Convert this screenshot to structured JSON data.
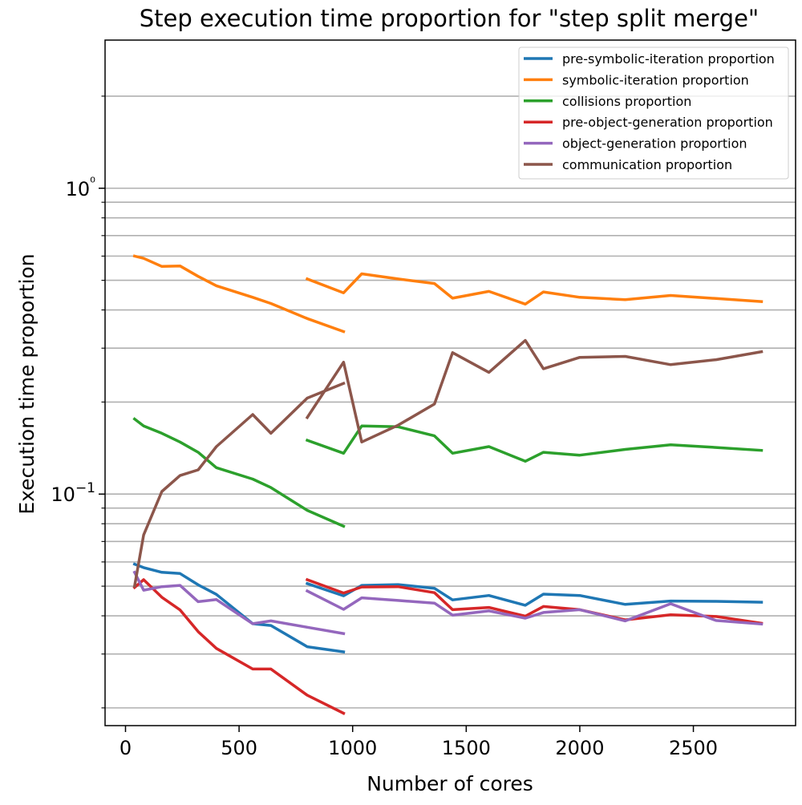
{
  "chart_data": {
    "type": "line",
    "title": "Step execution time proportion for \"step split merge\"",
    "xlabel": "Number of cores",
    "ylabel": "Execution time proportion",
    "xscale": "linear",
    "yscale": "log",
    "xlim": [
      -90,
      2950
    ],
    "ylim": [
      0.0175,
      3.05
    ],
    "grid": "y-major-and-minor",
    "legend_position": "top-right",
    "x_ticks": [
      0,
      500,
      1000,
      1500,
      2000,
      2500
    ],
    "x_tick_labels": [
      "0",
      "500",
      "1000",
      "1500",
      "2000",
      "2500"
    ],
    "y_ticks": [
      0.1,
      1
    ],
    "y_tick_labels": [
      "10−1",
      "10⁰"
    ],
    "y_minor_ticks": [
      0.02,
      0.03,
      0.04,
      0.05,
      0.06,
      0.07,
      0.08,
      0.09,
      0.2,
      0.3,
      0.4,
      0.5,
      0.6,
      0.7,
      0.8,
      0.9,
      2
    ],
    "series": [
      {
        "name": "pre-symbolic-iteration proportion",
        "color": "#1f77b4",
        "segments": [
          {
            "x": [
              40,
              80,
              160,
              240,
              320,
              400,
              560,
              640,
              800,
              960
            ],
            "y": [
              0.059,
              0.0575,
              0.0555,
              0.055,
              0.0505,
              0.047,
              0.0377,
              0.0372,
              0.0317,
              0.0305
            ]
          },
          {
            "x": [
              800,
              960,
              1040,
              1200,
              1360,
              1440,
              1600,
              1760,
              1840,
              2000,
              2200,
              2400,
              2600,
              2800
            ],
            "y": [
              0.051,
              0.0465,
              0.0503,
              0.0506,
              0.0492,
              0.0451,
              0.0466,
              0.0433,
              0.0471,
              0.0466,
              0.0436,
              0.0447,
              0.0446,
              0.0443
            ]
          }
        ]
      },
      {
        "name": "symbolic-iteration proportion",
        "color": "#ff7f0e",
        "segments": [
          {
            "x": [
              40,
              80,
              160,
              240,
              320,
              400,
              560,
              640,
              800,
              960
            ],
            "y": [
              0.6,
              0.59,
              0.555,
              0.557,
              0.515,
              0.48,
              0.44,
              0.42,
              0.375,
              0.34
            ]
          },
          {
            "x": [
              800,
              960,
              1040,
              1200,
              1360,
              1440,
              1600,
              1760,
              1840,
              2000,
              2200,
              2400,
              2600,
              2800
            ],
            "y": [
              0.505,
              0.455,
              0.525,
              0.505,
              0.488,
              0.437,
              0.46,
              0.418,
              0.458,
              0.44,
              0.432,
              0.446,
              0.436,
              0.426
            ]
          }
        ]
      },
      {
        "name": "collisions proportion",
        "color": "#2ca02c",
        "segments": [
          {
            "x": [
              40,
              80,
              160,
              240,
              320,
              400,
              560,
              640,
              800,
              960
            ],
            "y": [
              0.176,
              0.167,
              0.158,
              0.148,
              0.137,
              0.122,
              0.112,
              0.105,
              0.0885,
              0.0785
            ]
          },
          {
            "x": [
              800,
              960,
              1040,
              1200,
              1360,
              1440,
              1600,
              1760,
              1840,
              2000,
              2200,
              2400,
              2600,
              2800
            ],
            "y": [
              0.15,
              0.136,
              0.167,
              0.166,
              0.155,
              0.136,
              0.143,
              0.128,
              0.137,
              0.134,
              0.14,
              0.145,
              0.142,
              0.139
            ]
          }
        ]
      },
      {
        "name": "pre-object-generation proportion",
        "color": "#d62728",
        "segments": [
          {
            "x": [
              40,
              80,
              160,
              240,
              320,
              400,
              560,
              640,
              800,
              960
            ],
            "y": [
              0.0495,
              0.0525,
              0.046,
              0.0418,
              0.0355,
              0.0313,
              0.0268,
              0.0268,
              0.022,
              0.0192
            ]
          },
          {
            "x": [
              800,
              960,
              1040,
              1200,
              1360,
              1440,
              1600,
              1760,
              1840,
              2000,
              2200,
              2400,
              2600,
              2800
            ],
            "y": [
              0.0525,
              0.0475,
              0.0497,
              0.0498,
              0.0476,
              0.0419,
              0.0426,
              0.0399,
              0.0429,
              0.0419,
              0.0388,
              0.0403,
              0.0398,
              0.0378
            ]
          }
        ]
      },
      {
        "name": "object-generation proportion",
        "color": "#9467bd",
        "segments": [
          {
            "x": [
              40,
              80,
              160,
              240,
              320,
              400,
              560,
              640,
              800,
              960
            ],
            "y": [
              0.0555,
              0.0485,
              0.0498,
              0.0503,
              0.0445,
              0.0452,
              0.0377,
              0.0385,
              0.0367,
              0.035
            ]
          },
          {
            "x": [
              800,
              960,
              1040,
              1200,
              1360,
              1440,
              1600,
              1760,
              1840,
              2000,
              2200,
              2400,
              2600,
              2800
            ],
            "y": [
              0.0482,
              0.042,
              0.0458,
              0.0449,
              0.044,
              0.0402,
              0.0415,
              0.0393,
              0.041,
              0.0419,
              0.0385,
              0.0438,
              0.0386,
              0.0376
            ]
          }
        ]
      },
      {
        "name": "communication proportion",
        "color": "#8c564b",
        "segments": [
          {
            "x": [
              40,
              80,
              160,
              240,
              320,
              400,
              560,
              640,
              800,
              960
            ],
            "y": [
              0.05,
              0.0735,
              0.102,
              0.115,
              0.12,
              0.143,
              0.182,
              0.158,
              0.206,
              0.23
            ]
          },
          {
            "x": [
              800,
              960,
              1040,
              1200,
              1360,
              1440,
              1600,
              1760,
              1840,
              2000,
              2200,
              2400,
              2600,
              2800
            ],
            "y": [
              0.178,
              0.27,
              0.148,
              0.168,
              0.197,
              0.29,
              0.25,
              0.318,
              0.257,
              0.28,
              0.282,
              0.265,
              0.275,
              0.292
            ]
          }
        ]
      }
    ]
  }
}
